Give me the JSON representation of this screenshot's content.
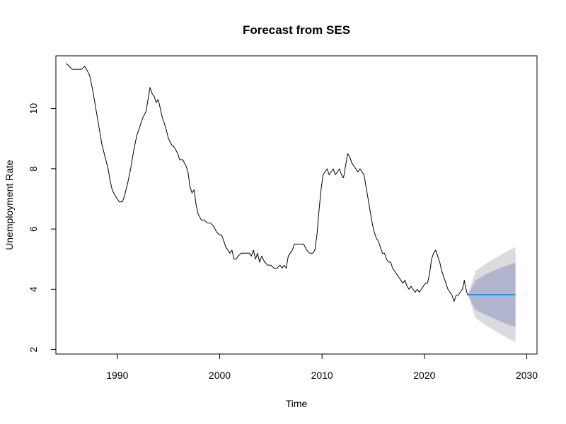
{
  "chart_data": {
    "type": "line",
    "title": "Forecast from SES",
    "xlabel": "Time",
    "ylabel": "Unemployment Rate",
    "xlim": [
      1984,
      2031
    ],
    "ylim": [
      1.85,
      11.75
    ],
    "x_ticks": [
      1990,
      2000,
      2010,
      2020,
      2030
    ],
    "y_ticks": [
      2,
      4,
      6,
      8,
      10
    ],
    "grid": false,
    "legend": "none",
    "series": [
      {
        "role": "observed",
        "color": "#000000",
        "points": [
          [
            1985.0,
            11.5
          ],
          [
            1985.3,
            11.4
          ],
          [
            1985.6,
            11.3
          ],
          [
            1986.0,
            11.3
          ],
          [
            1986.5,
            11.3
          ],
          [
            1986.8,
            11.4
          ],
          [
            1987.0,
            11.3
          ],
          [
            1987.3,
            11.1
          ],
          [
            1987.6,
            10.6
          ],
          [
            1987.9,
            10.0
          ],
          [
            1988.2,
            9.4
          ],
          [
            1988.5,
            8.8
          ],
          [
            1988.8,
            8.4
          ],
          [
            1989.1,
            8.0
          ],
          [
            1989.3,
            7.6
          ],
          [
            1989.5,
            7.3
          ],
          [
            1989.8,
            7.1
          ],
          [
            1990.0,
            7.0
          ],
          [
            1990.2,
            6.9
          ],
          [
            1990.5,
            6.9
          ],
          [
            1990.7,
            7.1
          ],
          [
            1991.0,
            7.5
          ],
          [
            1991.3,
            8.0
          ],
          [
            1991.6,
            8.6
          ],
          [
            1991.9,
            9.1
          ],
          [
            1992.2,
            9.4
          ],
          [
            1992.5,
            9.7
          ],
          [
            1992.8,
            9.9
          ],
          [
            1992.95,
            10.2
          ],
          [
            1993.1,
            10.5
          ],
          [
            1993.2,
            10.7
          ],
          [
            1993.4,
            10.5
          ],
          [
            1993.6,
            10.4
          ],
          [
            1993.8,
            10.2
          ],
          [
            1994.0,
            10.3
          ],
          [
            1994.2,
            10.0
          ],
          [
            1994.4,
            9.7
          ],
          [
            1994.7,
            9.4
          ],
          [
            1995.0,
            9.0
          ],
          [
            1995.3,
            8.8
          ],
          [
            1995.6,
            8.7
          ],
          [
            1995.9,
            8.5
          ],
          [
            1996.1,
            8.3
          ],
          [
            1996.4,
            8.3
          ],
          [
            1996.7,
            8.1
          ],
          [
            1996.9,
            7.9
          ],
          [
            1997.1,
            7.4
          ],
          [
            1997.3,
            7.2
          ],
          [
            1997.5,
            7.3
          ],
          [
            1997.7,
            6.8
          ],
          [
            1997.9,
            6.5
          ],
          [
            1998.2,
            6.3
          ],
          [
            1998.5,
            6.3
          ],
          [
            1998.8,
            6.2
          ],
          [
            1999.1,
            6.2
          ],
          [
            1999.4,
            6.1
          ],
          [
            1999.7,
            5.9
          ],
          [
            2000.0,
            5.8
          ],
          [
            2000.2,
            5.8
          ],
          [
            2000.4,
            5.6
          ],
          [
            2000.6,
            5.4
          ],
          [
            2000.8,
            5.3
          ],
          [
            2001.0,
            5.2
          ],
          [
            2001.2,
            5.3
          ],
          [
            2001.4,
            5.0
          ],
          [
            2001.6,
            5.0
          ],
          [
            2001.8,
            5.1
          ],
          [
            2002.1,
            5.2
          ],
          [
            2002.4,
            5.2
          ],
          [
            2002.7,
            5.2
          ],
          [
            2002.9,
            5.2
          ],
          [
            2003.1,
            5.1
          ],
          [
            2003.3,
            5.3
          ],
          [
            2003.5,
            5.0
          ],
          [
            2003.7,
            5.2
          ],
          [
            2003.9,
            4.9
          ],
          [
            2004.1,
            5.1
          ],
          [
            2004.4,
            4.9
          ],
          [
            2004.7,
            4.8
          ],
          [
            2005.0,
            4.8
          ],
          [
            2005.3,
            4.7
          ],
          [
            2005.6,
            4.7
          ],
          [
            2005.9,
            4.8
          ],
          [
            2006.1,
            4.7
          ],
          [
            2006.3,
            4.8
          ],
          [
            2006.5,
            4.7
          ],
          [
            2006.7,
            5.1
          ],
          [
            2006.9,
            5.2
          ],
          [
            2007.1,
            5.3
          ],
          [
            2007.3,
            5.5
          ],
          [
            2007.6,
            5.5
          ],
          [
            2007.9,
            5.5
          ],
          [
            2008.2,
            5.5
          ],
          [
            2008.5,
            5.3
          ],
          [
            2008.8,
            5.2
          ],
          [
            2009.1,
            5.2
          ],
          [
            2009.3,
            5.3
          ],
          [
            2009.5,
            5.8
          ],
          [
            2009.7,
            6.6
          ],
          [
            2009.9,
            7.3
          ],
          [
            2010.1,
            7.8
          ],
          [
            2010.3,
            7.9
          ],
          [
            2010.5,
            8.0
          ],
          [
            2010.7,
            7.8
          ],
          [
            2010.9,
            7.9
          ],
          [
            2011.1,
            8.0
          ],
          [
            2011.3,
            7.8
          ],
          [
            2011.5,
            7.9
          ],
          [
            2011.7,
            8.0
          ],
          [
            2011.9,
            7.8
          ],
          [
            2012.1,
            7.7
          ],
          [
            2012.3,
            8.1
          ],
          [
            2012.5,
            8.5
          ],
          [
            2012.7,
            8.4
          ],
          [
            2012.9,
            8.2
          ],
          [
            2013.1,
            8.1
          ],
          [
            2013.3,
            8.0
          ],
          [
            2013.5,
            7.9
          ],
          [
            2013.7,
            8.0
          ],
          [
            2013.9,
            7.9
          ],
          [
            2014.1,
            7.8
          ],
          [
            2014.3,
            7.4
          ],
          [
            2014.5,
            7.0
          ],
          [
            2014.7,
            6.6
          ],
          [
            2014.9,
            6.2
          ],
          [
            2015.1,
            5.9
          ],
          [
            2015.3,
            5.7
          ],
          [
            2015.5,
            5.6
          ],
          [
            2015.7,
            5.4
          ],
          [
            2015.9,
            5.2
          ],
          [
            2016.1,
            5.2
          ],
          [
            2016.3,
            5.0
          ],
          [
            2016.5,
            4.9
          ],
          [
            2016.7,
            4.9
          ],
          [
            2016.9,
            4.7
          ],
          [
            2017.1,
            4.6
          ],
          [
            2017.3,
            4.5
          ],
          [
            2017.5,
            4.4
          ],
          [
            2017.7,
            4.3
          ],
          [
            2017.9,
            4.2
          ],
          [
            2018.1,
            4.3
          ],
          [
            2018.3,
            4.1
          ],
          [
            2018.5,
            4.0
          ],
          [
            2018.7,
            4.1
          ],
          [
            2018.9,
            4.0
          ],
          [
            2019.1,
            3.9
          ],
          [
            2019.3,
            4.0
          ],
          [
            2019.5,
            3.9
          ],
          [
            2019.7,
            4.0
          ],
          [
            2019.9,
            4.1
          ],
          [
            2020.1,
            4.2
          ],
          [
            2020.3,
            4.2
          ],
          [
            2020.5,
            4.5
          ],
          [
            2020.7,
            5.0
          ],
          [
            2020.9,
            5.2
          ],
          [
            2021.1,
            5.3
          ],
          [
            2021.3,
            5.1
          ],
          [
            2021.5,
            4.9
          ],
          [
            2021.7,
            4.6
          ],
          [
            2021.9,
            4.4
          ],
          [
            2022.1,
            4.2
          ],
          [
            2022.3,
            4.0
          ],
          [
            2022.5,
            3.9
          ],
          [
            2022.7,
            3.8
          ],
          [
            2022.9,
            3.6
          ],
          [
            2023.1,
            3.8
          ],
          [
            2023.3,
            3.8
          ],
          [
            2023.5,
            3.9
          ],
          [
            2023.7,
            4.0
          ],
          [
            2023.85,
            4.2
          ],
          [
            2023.9,
            4.3
          ],
          [
            2024.0,
            4.1
          ],
          [
            2024.15,
            3.9
          ],
          [
            2024.25,
            3.8
          ]
        ]
      },
      {
        "role": "forecast",
        "color": "#2297e6",
        "points": [
          [
            2024.25,
            3.82
          ],
          [
            2028.9,
            3.82
          ]
        ]
      }
    ],
    "bands": [
      {
        "level": "95%",
        "color": "#dbdbdf",
        "x": [
          2024.25,
          2025.0,
          2026.0,
          2027.0,
          2028.0,
          2028.9
        ],
        "lower": [
          3.82,
          3.05,
          2.8,
          2.6,
          2.4,
          2.25
        ],
        "upper": [
          3.82,
          4.6,
          4.85,
          5.05,
          5.25,
          5.4
        ]
      },
      {
        "level": "80%",
        "color": "#b1b5ce",
        "x": [
          2024.25,
          2025.0,
          2026.0,
          2027.0,
          2028.0,
          2028.9
        ],
        "lower": [
          3.82,
          3.32,
          3.15,
          3.0,
          2.85,
          2.75
        ],
        "upper": [
          3.82,
          4.3,
          4.5,
          4.65,
          4.78,
          4.88
        ]
      }
    ]
  }
}
